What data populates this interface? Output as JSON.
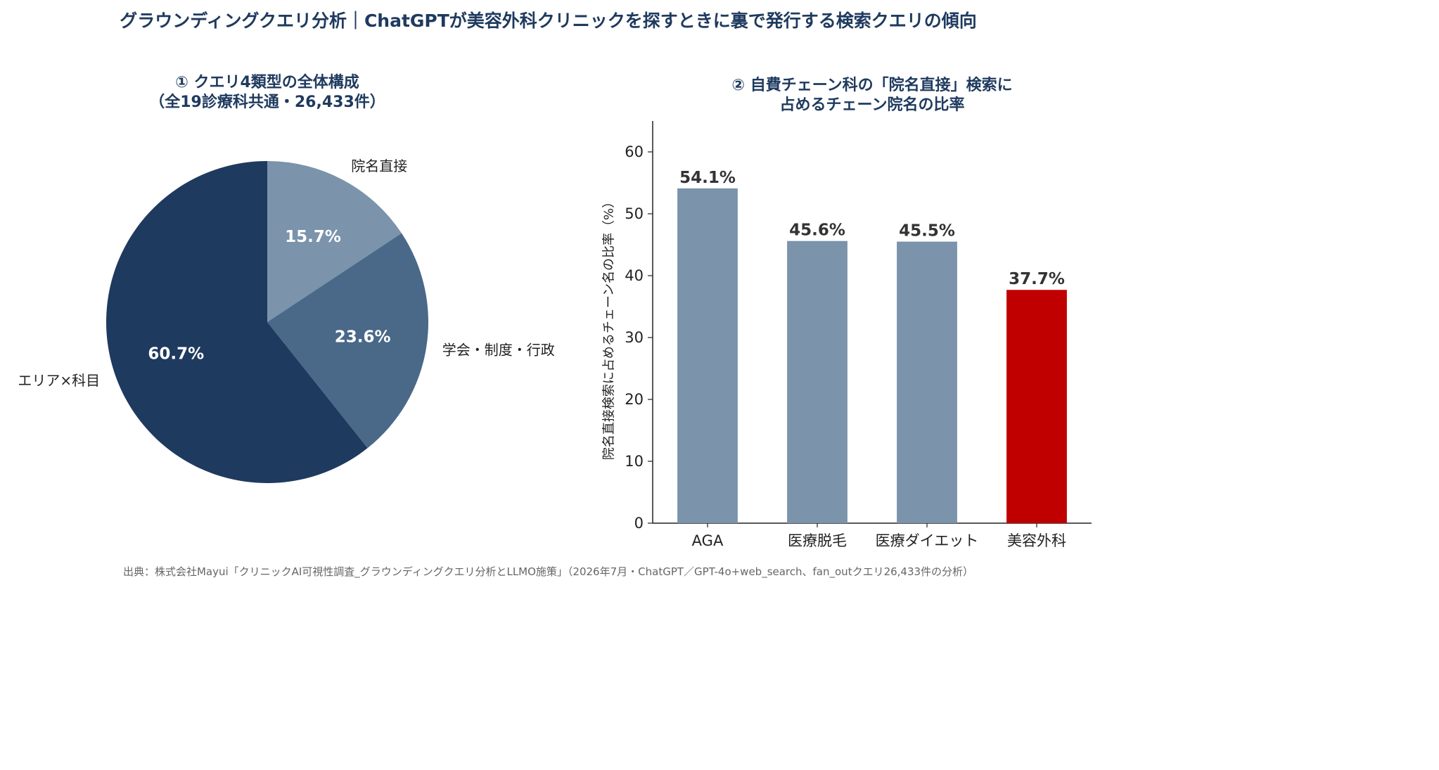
{
  "title": "グラウンディングクエリ分析｜ChatGPTが美容外科クリニックを探すときに裏で発行する検索クエリの傾向",
  "source": "出典：株式会社Mayui「クリニックAI可視性調査_グラウンディングクエリ分析とLLMO施策」（2026年7月・ChatGPT／GPT-4o+web_search、fan_outクエリ26,433件の分析）",
  "chart_data": [
    {
      "type": "pie",
      "title_lines": [
        "① クエリ4類型の全体構成",
        "（全19診療科共通・26,433件）"
      ],
      "slices": [
        {
          "label": "院名直接",
          "value": 15.7,
          "value_label": "15.7%",
          "color": "#7b93ab"
        },
        {
          "label": "学会・制度・行政",
          "value": 23.6,
          "value_label": "23.6%",
          "color": "#4a6888"
        },
        {
          "label": "エリア×科目",
          "value": 60.7,
          "value_label": "60.7%",
          "color": "#1f3a5f"
        }
      ],
      "start": "top",
      "direction": "clockwise"
    },
    {
      "type": "bar",
      "title_lines": [
        "② 自費チェーン科の「院名直接」検索に",
        "占めるチェーン院名の比率"
      ],
      "categories": [
        "AGA",
        "医療脱毛",
        "医療ダイエット",
        "美容外科"
      ],
      "values": [
        54.1,
        45.6,
        45.5,
        37.7
      ],
      "value_labels": [
        "54.1%",
        "45.6%",
        "45.5%",
        "37.7%"
      ],
      "colors": [
        "#7b93ab",
        "#7b93ab",
        "#7b93ab",
        "#c00000"
      ],
      "ylabel": "院名直接検索に占めるチェーン名の比率（%）",
      "ylim": [
        0,
        65
      ],
      "yticks": [
        0,
        10,
        20,
        30,
        40,
        50,
        60
      ],
      "grid": false
    }
  ]
}
